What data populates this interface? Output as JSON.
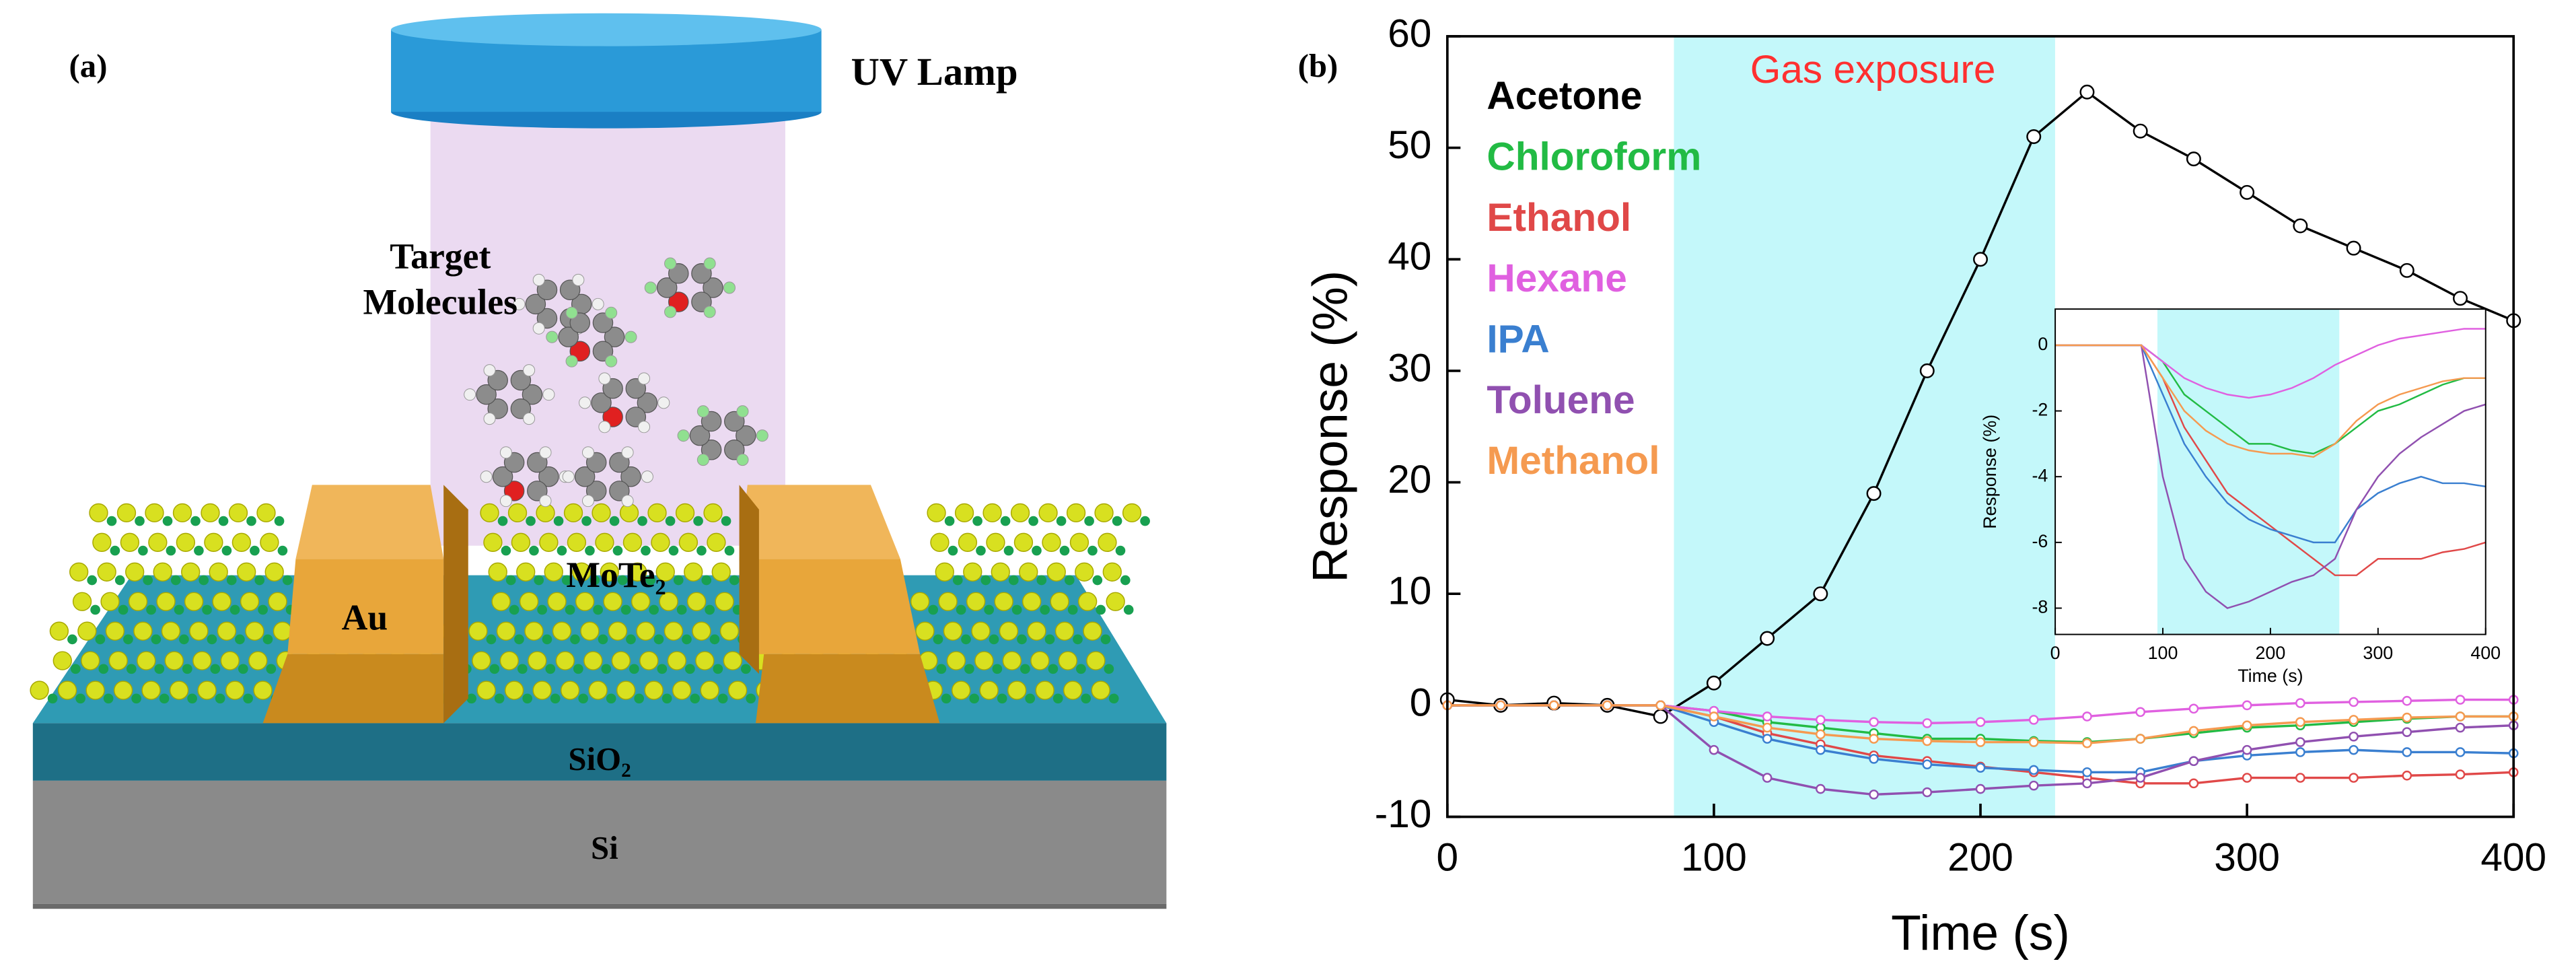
{
  "panel_a": {
    "label": "(a)",
    "lamp": "UV Lamp",
    "molecules": [
      "Target",
      "Molecules"
    ],
    "electrode": "Au",
    "channel": "MoTe₂",
    "oxide": "SiO₂",
    "substrate": "Si"
  },
  "panel_b": {
    "label": "(b)"
  },
  "chart_data": [
    {
      "type": "line",
      "xlabel": "Time (s)",
      "ylabel": "Response (%)",
      "annotation": "Gas exposure",
      "shaded_region": [
        85,
        228
      ],
      "xlim": [
        0,
        400
      ],
      "ylim": [
        -10,
        60
      ],
      "xticks": [
        0,
        100,
        200,
        300,
        400
      ],
      "yticks": [
        -10,
        0,
        10,
        20,
        30,
        40,
        50,
        60
      ],
      "markers": true,
      "x": [
        0,
        20,
        40,
        60,
        80,
        100,
        120,
        140,
        160,
        180,
        200,
        220,
        240,
        260,
        280,
        300,
        320,
        340,
        360,
        380,
        400
      ],
      "series": [
        {
          "name": "Acetone",
          "color": "#000000",
          "values": [
            0.5,
            0,
            0.2,
            0,
            -1,
            2,
            6,
            10,
            19,
            30,
            40,
            51,
            55,
            51.5,
            49,
            46,
            43,
            41,
            39,
            36.5,
            34.5
          ]
        },
        {
          "name": "Chloroform",
          "color": "#22bb44",
          "values": [
            0,
            0,
            0,
            0,
            0,
            -0.5,
            -1.5,
            -2,
            -2.5,
            -3,
            -3,
            -3.2,
            -3.3,
            -3,
            -2.5,
            -2,
            -1.8,
            -1.5,
            -1.2,
            -1,
            -1
          ]
        },
        {
          "name": "Ethanol",
          "color": "#e04848",
          "values": [
            0,
            0,
            0,
            0,
            0,
            -1,
            -2.5,
            -3.5,
            -4.5,
            -5,
            -5.5,
            -6,
            -6.5,
            -7,
            -7,
            -6.5,
            -6.5,
            -6.5,
            -6.3,
            -6.2,
            -6
          ]
        },
        {
          "name": "Hexane",
          "color": "#e060e0",
          "values": [
            0,
            0,
            0,
            0,
            0,
            -0.5,
            -1,
            -1.3,
            -1.5,
            -1.6,
            -1.5,
            -1.3,
            -1,
            -0.6,
            -0.3,
            0,
            0.2,
            0.3,
            0.4,
            0.5,
            0.5
          ]
        },
        {
          "name": "IPA",
          "color": "#3a7fd0",
          "values": [
            0,
            0,
            0,
            0,
            0,
            -1.5,
            -3,
            -4,
            -4.8,
            -5.3,
            -5.6,
            -5.8,
            -6,
            -6,
            -5,
            -4.5,
            -4.2,
            -4,
            -4.2,
            -4.2,
            -4.3
          ]
        },
        {
          "name": "Toluene",
          "color": "#9050b0",
          "values": [
            0,
            0,
            0,
            0,
            0,
            -4,
            -6.5,
            -7.5,
            -8,
            -7.8,
            -7.5,
            -7.2,
            -7,
            -6.5,
            -5,
            -4,
            -3.3,
            -2.8,
            -2.4,
            -2,
            -1.8
          ]
        },
        {
          "name": "Methanol",
          "color": "#f59a50",
          "values": [
            0,
            0,
            0,
            0,
            0,
            -1,
            -2,
            -2.6,
            -3,
            -3.2,
            -3.3,
            -3.3,
            -3.4,
            -3,
            -2.3,
            -1.8,
            -1.5,
            -1.3,
            -1.1,
            -1,
            -1
          ]
        }
      ]
    },
    {
      "type": "line",
      "xlabel": "Time (s)",
      "ylabel": "Response (%)",
      "shaded_region": [
        95,
        264
      ],
      "xlim": [
        0,
        400
      ],
      "ylim": [
        -8.8,
        1.1
      ],
      "xticks": [
        0,
        100,
        200,
        300,
        400
      ],
      "yticks": [
        0,
        -2,
        -4,
        -6,
        -8
      ],
      "markers": false,
      "x": [
        0,
        20,
        40,
        60,
        80,
        100,
        120,
        140,
        160,
        180,
        200,
        220,
        240,
        260,
        280,
        300,
        320,
        340,
        360,
        380,
        400
      ],
      "series": [
        {
          "color": "#22bb44",
          "values": [
            0,
            0,
            0,
            0,
            0,
            -0.5,
            -1.5,
            -2,
            -2.5,
            -3,
            -3,
            -3.2,
            -3.3,
            -3,
            -2.5,
            -2,
            -1.8,
            -1.5,
            -1.2,
            -1,
            -1
          ]
        },
        {
          "color": "#e04848",
          "values": [
            0,
            0,
            0,
            0,
            0,
            -1,
            -2.5,
            -3.5,
            -4.5,
            -5,
            -5.5,
            -6,
            -6.5,
            -7,
            -7,
            -6.5,
            -6.5,
            -6.5,
            -6.3,
            -6.2,
            -6
          ]
        },
        {
          "color": "#e060e0",
          "values": [
            0,
            0,
            0,
            0,
            0,
            -0.5,
            -1,
            -1.3,
            -1.5,
            -1.6,
            -1.5,
            -1.3,
            -1,
            -0.6,
            -0.3,
            0,
            0.2,
            0.3,
            0.4,
            0.5,
            0.5
          ]
        },
        {
          "color": "#3a7fd0",
          "values": [
            0,
            0,
            0,
            0,
            0,
            -1.5,
            -3,
            -4,
            -4.8,
            -5.3,
            -5.6,
            -5.8,
            -6,
            -6,
            -5,
            -4.5,
            -4.2,
            -4,
            -4.2,
            -4.2,
            -4.3
          ]
        },
        {
          "color": "#9050b0",
          "values": [
            0,
            0,
            0,
            0,
            0,
            -4,
            -6.5,
            -7.5,
            -8,
            -7.8,
            -7.5,
            -7.2,
            -7,
            -6.5,
            -5,
            -4,
            -3.3,
            -2.8,
            -2.4,
            -2,
            -1.8
          ]
        },
        {
          "color": "#f59a50",
          "values": [
            0,
            0,
            0,
            0,
            0,
            -1,
            -2,
            -2.6,
            -3,
            -3.2,
            -3.3,
            -3.3,
            -3.4,
            -3,
            -2.3,
            -1.8,
            -1.5,
            -1.3,
            -1.1,
            -1,
            -1
          ]
        }
      ]
    }
  ]
}
